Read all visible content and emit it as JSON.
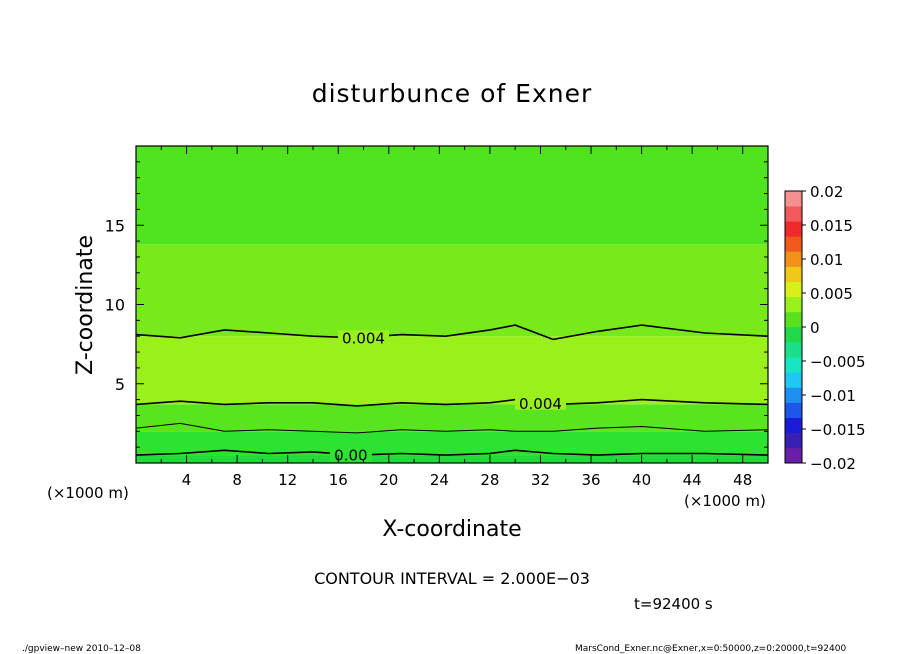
{
  "chart_data": {
    "type": "heatmap",
    "title": "disturbunce of Exner",
    "xlabel": "X-coordinate",
    "ylabel": "Z-coordinate",
    "x_unit_left": "(×1000 m)",
    "x_unit_right": "(×1000 m)",
    "xlim": [
      0,
      50
    ],
    "ylim": [
      0,
      20
    ],
    "x_ticks": [
      4,
      8,
      12,
      16,
      20,
      24,
      28,
      32,
      36,
      40,
      44,
      48
    ],
    "y_ticks": [
      5,
      10,
      15
    ],
    "colorbar": {
      "ticks": [
        "0.02",
        "0.015",
        "0.01",
        "0.005",
        "0",
        "−0.005",
        "−0.01",
        "−0.015",
        "−0.02"
      ],
      "range": [
        -0.02,
        0.02
      ],
      "colors": [
        "#6a1fa8",
        "#3a1fb4",
        "#1b1bd8",
        "#1f56ea",
        "#1f8ff2",
        "#1fc8f2",
        "#17e6c2",
        "#18e08a",
        "#20d84a",
        "#58e21e",
        "#9af01a",
        "#d8f018",
        "#f0c818",
        "#f2901c",
        "#f25a1c",
        "#f02a2a",
        "#f05a5a",
        "#f49090"
      ]
    },
    "fill_bands": [
      {
        "z_from": 0,
        "z_to": 0.5,
        "level": 0.0,
        "color": "#20dc3a"
      },
      {
        "z_from": 0.5,
        "z_to": 2.0,
        "level": 0.001,
        "color": "#2ee232"
      },
      {
        "z_from": 2.0,
        "z_to": 3.7,
        "level": 0.003,
        "color": "#58e41e"
      },
      {
        "z_from": 3.7,
        "z_to": 8.0,
        "level": 0.005,
        "color": "#9af01a"
      },
      {
        "z_from": 8.0,
        "z_to": 13.8,
        "level": 0.004,
        "color": "#78ea1c"
      },
      {
        "z_from": 13.8,
        "z_to": 20,
        "level": 0.002,
        "color": "#50e420"
      }
    ],
    "contours": [
      {
        "label": "0.004",
        "label_x": 18,
        "z": [
          8.1,
          7.9,
          8.4,
          8.2,
          8.0,
          7.9,
          8.1,
          8.0,
          8.4,
          8.7,
          7.8,
          8.3,
          8.7,
          8.2,
          8.0
        ]
      },
      {
        "label": "0.004",
        "label_x": 32,
        "z": [
          3.7,
          3.9,
          3.7,
          3.8,
          3.8,
          3.6,
          3.8,
          3.7,
          3.8,
          4.0,
          3.7,
          3.8,
          4.0,
          3.8,
          3.7
        ]
      },
      {
        "label": "",
        "label_x": null,
        "z": [
          2.2,
          2.5,
          2.0,
          2.1,
          2.0,
          1.9,
          2.1,
          2.0,
          2.1,
          2.0,
          2.0,
          2.2,
          2.3,
          2.0,
          2.1
        ]
      },
      {
        "label": "0.00",
        "label_x": 17,
        "z": [
          0.5,
          0.6,
          0.8,
          0.6,
          0.7,
          0.5,
          0.6,
          0.5,
          0.6,
          0.8,
          0.6,
          0.5,
          0.6,
          0.6,
          0.5
        ]
      }
    ],
    "contour_x": [
      0,
      3.5,
      7,
      10.5,
      14,
      17.5,
      21,
      24.5,
      28,
      30,
      33,
      36.5,
      40,
      45,
      50
    ]
  },
  "footer": {
    "contour_interval": "CONTOUR INTERVAL = 2.000E−03",
    "time_label": "t=92400 s",
    "left_note": "./gpview–new   2010–12–08",
    "right_note": "MarsCond_Exner.nc@Exner,x=0:50000,z=0:20000,t=92400"
  }
}
